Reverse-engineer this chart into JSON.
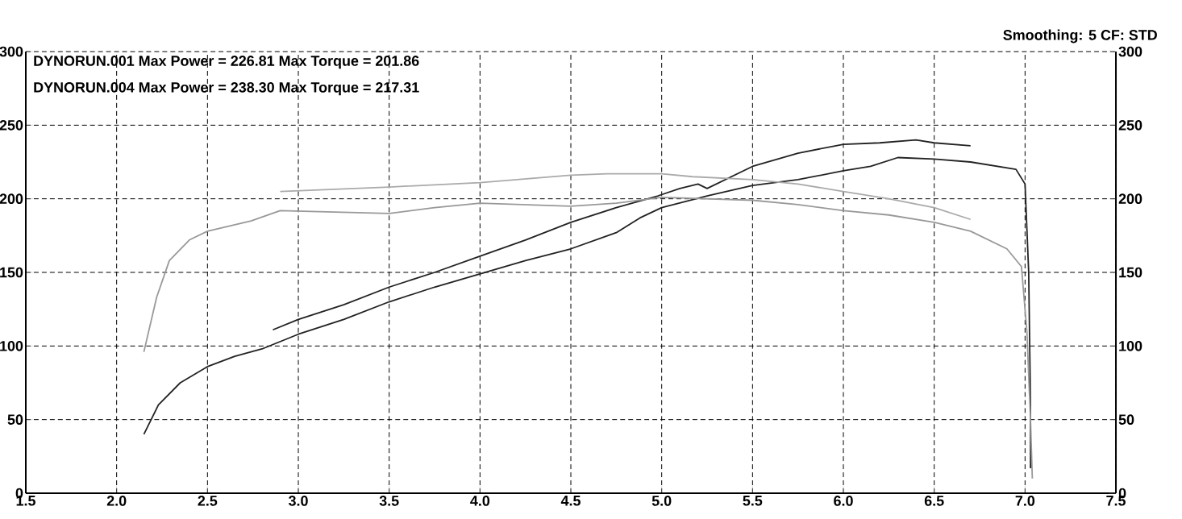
{
  "chart_data": {
    "type": "line",
    "annotations": [
      "Smoothing: 5  CF: STD",
      "DYNORUN.001 Max Power = 226.81 Max Torque = 201.86",
      "DYNORUN.004 Max Power = 238.30 Max Torque = 217.31"
    ],
    "series": [
      {
        "color": "#222222",
        "x": [
          2.15,
          2.23,
          2.35,
          2.5,
          2.65,
          2.8,
          3.0,
          3.25,
          3.5,
          3.75,
          4.0,
          4.25,
          4.5,
          4.75,
          4.88,
          5.0,
          5.25,
          5.5,
          5.75,
          6.0,
          6.15,
          6.3,
          6.5,
          6.7,
          6.95,
          7.0,
          7.02,
          7.03,
          7.03
        ],
        "values": [
          40,
          60,
          75,
          86,
          93,
          98,
          108,
          118,
          130,
          140,
          149,
          158,
          166,
          177,
          187,
          194,
          202,
          209,
          213,
          219,
          222,
          228,
          227,
          225,
          220,
          210,
          150,
          60,
          17
        ]
      },
      {
        "color": "#222222",
        "x": [
          2.86,
          3.0,
          3.25,
          3.5,
          3.75,
          4.0,
          4.25,
          4.5,
          4.75,
          4.98,
          5.1,
          5.2,
          5.25,
          5.5,
          5.75,
          6.0,
          6.2,
          6.4,
          6.5,
          6.7
        ],
        "values": [
          111,
          118,
          128,
          140,
          150,
          161,
          172,
          184,
          194,
          202,
          207,
          210,
          207,
          222,
          231,
          237,
          238,
          240,
          238,
          236
        ]
      },
      {
        "color": "#999999",
        "x": [
          2.15,
          2.22,
          2.29,
          2.4,
          2.5,
          2.74,
          2.9,
          3.2,
          3.5,
          3.75,
          4.0,
          4.5,
          4.75,
          5.0,
          5.25,
          5.5,
          5.75,
          6.0,
          6.25,
          6.5,
          6.7,
          6.9,
          6.98,
          7.01,
          7.03,
          7.04
        ],
        "values": [
          96,
          133,
          158,
          172,
          178,
          185,
          192,
          191,
          190,
          194,
          197,
          195,
          197,
          201,
          200,
          199,
          196,
          192,
          189,
          184,
          178,
          166,
          154,
          110,
          50,
          10
        ]
      },
      {
        "color": "#aaaaaa",
        "x": [
          2.9,
          3.5,
          4.0,
          4.5,
          4.7,
          5.0,
          5.17,
          5.5,
          5.75,
          6.0,
          6.25,
          6.5,
          6.7
        ],
        "values": [
          205,
          208,
          211,
          216,
          217,
          217,
          215,
          213,
          210,
          205,
          200,
          194,
          186
        ]
      }
    ],
    "xlim": [
      1.5,
      7.5
    ],
    "xticks": [
      1.5,
      {
        "value": 2,
        "label": "2.0"
      },
      2.5,
      {
        "value": 3,
        "label": "3.0"
      },
      3.5,
      {
        "value": 4,
        "label": "4.0"
      },
      4.5,
      {
        "value": 5,
        "label": "5.0"
      },
      5.5,
      {
        "value": 6,
        "label": "6.0"
      },
      6.5,
      {
        "value": 7,
        "label": "7.0"
      },
      7.5
    ],
    "ylim": [
      0,
      300
    ],
    "yticks": [
      0,
      50,
      100,
      150,
      200,
      250,
      300
    ],
    "y2lim": [
      0,
      300
    ],
    "y2ticks": [
      0,
      50,
      100,
      150,
      200,
      250,
      300
    ],
    "grid": true,
    "marker": "none",
    "line_style": "solid"
  }
}
